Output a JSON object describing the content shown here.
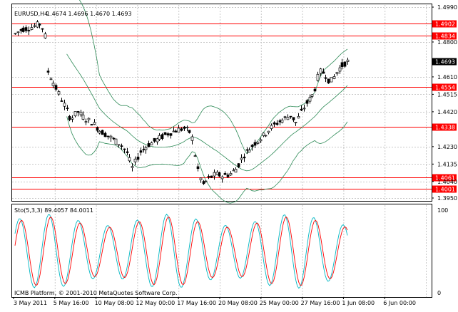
{
  "chart_data": [
    {
      "type": "candlestick",
      "title": "EURUSD,H4",
      "ohlc_readout": "1.4674 1.4696 1.4670 1.4693",
      "y_ticks": [
        "1.4990",
        "1.4800",
        "1.4610",
        "1.4515",
        "1.4420",
        "1.4230",
        "1.4135",
        "1.4040",
        "1.3950"
      ],
      "ylim": [
        1.395,
        1.499
      ],
      "current_price": "1.4693",
      "level_lines": [
        {
          "value": 1.4902,
          "label": "1.4902"
        },
        {
          "value": 1.4834,
          "label": "1.4834"
        },
        {
          "value": 1.4554,
          "label": "1.4554"
        },
        {
          "value": 1.4338,
          "label": "1.4338"
        },
        {
          "value": 1.4061,
          "label": "1.4061"
        },
        {
          "value": 1.4001,
          "label": "1.4001"
        }
      ],
      "bollinger_bands": true,
      "colors": {
        "line": "#ff0000",
        "label_bg": "#ff0000",
        "band": "#2e8b57",
        "price_label_bg": "#000000"
      }
    },
    {
      "type": "line",
      "title": "Sto(5,3,3) 89.4057 84.0011",
      "y_ticks": [
        "100",
        "0"
      ],
      "ylim": [
        0,
        100
      ],
      "series_colors": {
        "main": "#00b7c3",
        "signal": "#ff0000"
      }
    }
  ],
  "x_ticks": [
    "3 May 2011",
    "5 May 16:00",
    "10 May 08:00",
    "12 May 00:00",
    "17 May 16:00",
    "20 May 08:00",
    "25 May 00:00",
    "27 May 16:00",
    "1 Jun 08:00",
    "6 Jun 00:00"
  ],
  "copyright": "ICMB Platform, © 2001-2010 MetaQuotes Software Corp."
}
